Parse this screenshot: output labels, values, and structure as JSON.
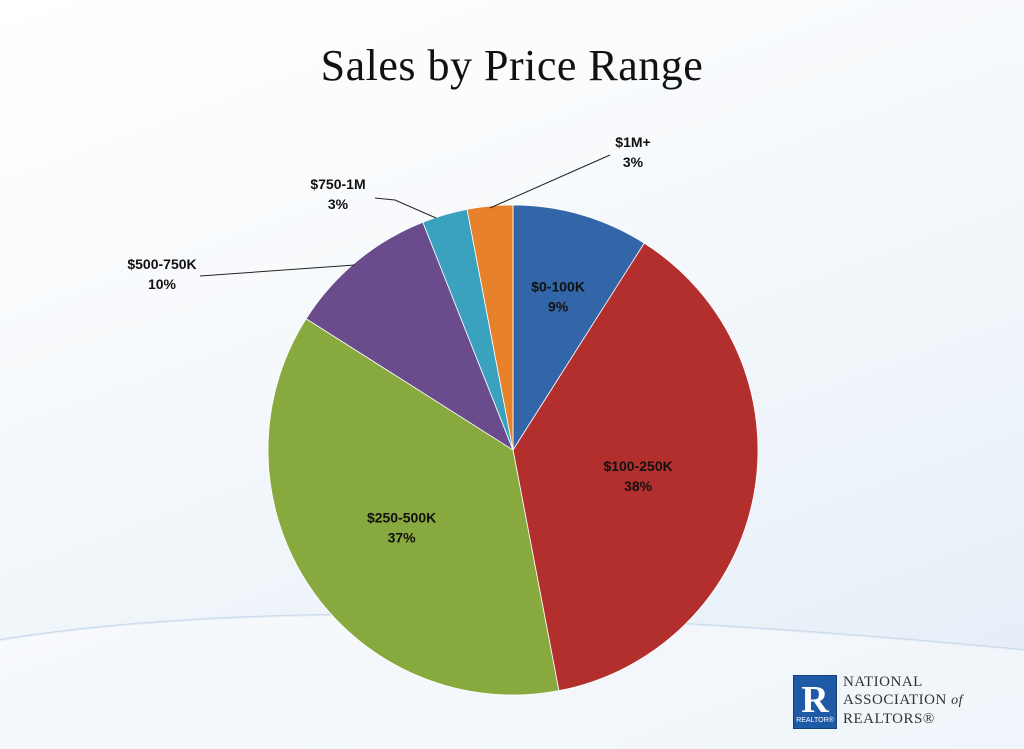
{
  "title": "Sales by Price Range",
  "chart_data": {
    "type": "pie",
    "title": "Sales by Price Range",
    "slices": [
      {
        "label": "$0-100K",
        "value": 9,
        "value_label": "9%",
        "color": "#3366a8",
        "label_placement": "inside"
      },
      {
        "label": "$100-250K",
        "value": 38,
        "value_label": "38%",
        "color": "#b32f2d",
        "label_placement": "inside"
      },
      {
        "label": "$250-500K",
        "value": 37,
        "value_label": "37%",
        "color": "#87a93e",
        "label_placement": "inside"
      },
      {
        "label": "$500-750K",
        "value": 10,
        "value_label": "10%",
        "color": "#6a4b8c",
        "label_placement": "outside"
      },
      {
        "label": "$750-1M",
        "value": 3,
        "value_label": "3%",
        "color": "#3aa1be",
        "label_placement": "outside"
      },
      {
        "label": "$1M+",
        "value": 3,
        "value_label": "3%",
        "color": "#e8822a",
        "label_placement": "outside"
      }
    ],
    "start": "12 o'clock",
    "direction": "clockwise",
    "legend": "none"
  },
  "logo": {
    "mark_letter": "R",
    "mark_sub": "REALTOR®",
    "line1": "NATIONAL",
    "line2": "ASSOCIATION",
    "line2_of": "of",
    "line3": "REALTORS®"
  }
}
